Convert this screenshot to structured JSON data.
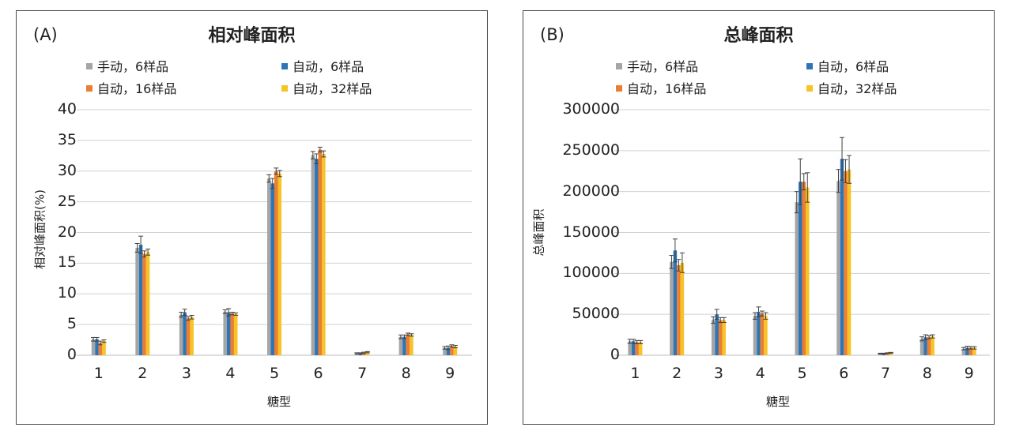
{
  "chart_data": [
    {
      "type": "bar",
      "panel_tag": "(A)",
      "title": "相对峰面积",
      "xlabel": "糖型",
      "ylabel": "相对峰面积(%)",
      "ylim": [
        0,
        40
      ],
      "yticks": [
        "0",
        "5",
        "10",
        "15",
        "20",
        "25",
        "30",
        "35",
        "40"
      ],
      "categories": [
        "1",
        "2",
        "3",
        "4",
        "5",
        "6",
        "7",
        "8",
        "9"
      ],
      "grid": true,
      "legend_position": "top",
      "series": [
        {
          "name": "手动，6样品",
          "color": "#a5a5a5",
          "values": [
            2.6,
            17.5,
            6.6,
            7.1,
            28.8,
            32.6,
            0.3,
            3.0,
            1.2
          ],
          "errors": [
            0.3,
            0.7,
            0.4,
            0.3,
            0.6,
            0.6,
            0.1,
            0.3,
            0.2
          ]
        },
        {
          "name": "自动，6样品",
          "color": "#2e75b6",
          "values": [
            2.6,
            18.0,
            7.0,
            7.0,
            28.0,
            32.0,
            0.3,
            3.0,
            1.2
          ],
          "errors": [
            0.3,
            1.4,
            0.5,
            0.6,
            0.8,
            0.8,
            0.1,
            0.3,
            0.3
          ]
        },
        {
          "name": "自动，16样品",
          "color": "#ed7d31",
          "values": [
            2.0,
            16.5,
            6.0,
            6.8,
            30.0,
            33.5,
            0.4,
            3.4,
            1.5
          ],
          "errors": [
            0.3,
            0.5,
            0.3,
            0.2,
            0.5,
            0.4,
            0.1,
            0.2,
            0.2
          ]
        },
        {
          "name": "自动，32样品",
          "color": "#f7c325",
          "values": [
            2.3,
            16.8,
            6.2,
            6.7,
            29.6,
            32.8,
            0.5,
            3.3,
            1.4
          ],
          "errors": [
            0.2,
            0.5,
            0.3,
            0.2,
            0.5,
            0.5,
            0.1,
            0.2,
            0.2
          ]
        }
      ]
    },
    {
      "type": "bar",
      "panel_tag": "(B)",
      "title": "总峰面积",
      "xlabel": "糖型",
      "ylabel": "总峰面积",
      "ylim": [
        0,
        300000
      ],
      "yticks": [
        "0",
        "50000",
        "100000",
        "150000",
        "200000",
        "250000",
        "300000"
      ],
      "categories": [
        "1",
        "2",
        "3",
        "4",
        "5",
        "6",
        "7",
        "8",
        "9"
      ],
      "grid": true,
      "legend_position": "top",
      "series": [
        {
          "name": "手动，6样品",
          "color": "#a5a5a5",
          "values": [
            17000,
            114000,
            43000,
            48000,
            187000,
            213000,
            2000,
            20000,
            8000
          ],
          "errors": [
            2500,
            8000,
            4000,
            4000,
            13000,
            14000,
            500,
            2500,
            1500
          ]
        },
        {
          "name": "自动，6样品",
          "color": "#2e75b6",
          "values": [
            17000,
            128000,
            50000,
            53000,
            212000,
            240000,
            2000,
            22000,
            9000
          ],
          "errors": [
            2500,
            14000,
            6000,
            6000,
            28000,
            26000,
            500,
            3000,
            2000
          ]
        },
        {
          "name": "自动，16样品",
          "color": "#ed7d31",
          "values": [
            16000,
            110000,
            43000,
            51000,
            212000,
            225000,
            2500,
            22000,
            9000
          ],
          "errors": [
            2000,
            7000,
            3000,
            3000,
            10000,
            14000,
            500,
            2000,
            1500
          ]
        },
        {
          "name": "自动，32样品",
          "color": "#f7c325",
          "values": [
            16000,
            113000,
            43000,
            48000,
            205000,
            227000,
            3000,
            23000,
            9000
          ],
          "errors": [
            2000,
            12000,
            3000,
            4000,
            18000,
            17000,
            500,
            2000,
            1500
          ]
        }
      ]
    }
  ]
}
